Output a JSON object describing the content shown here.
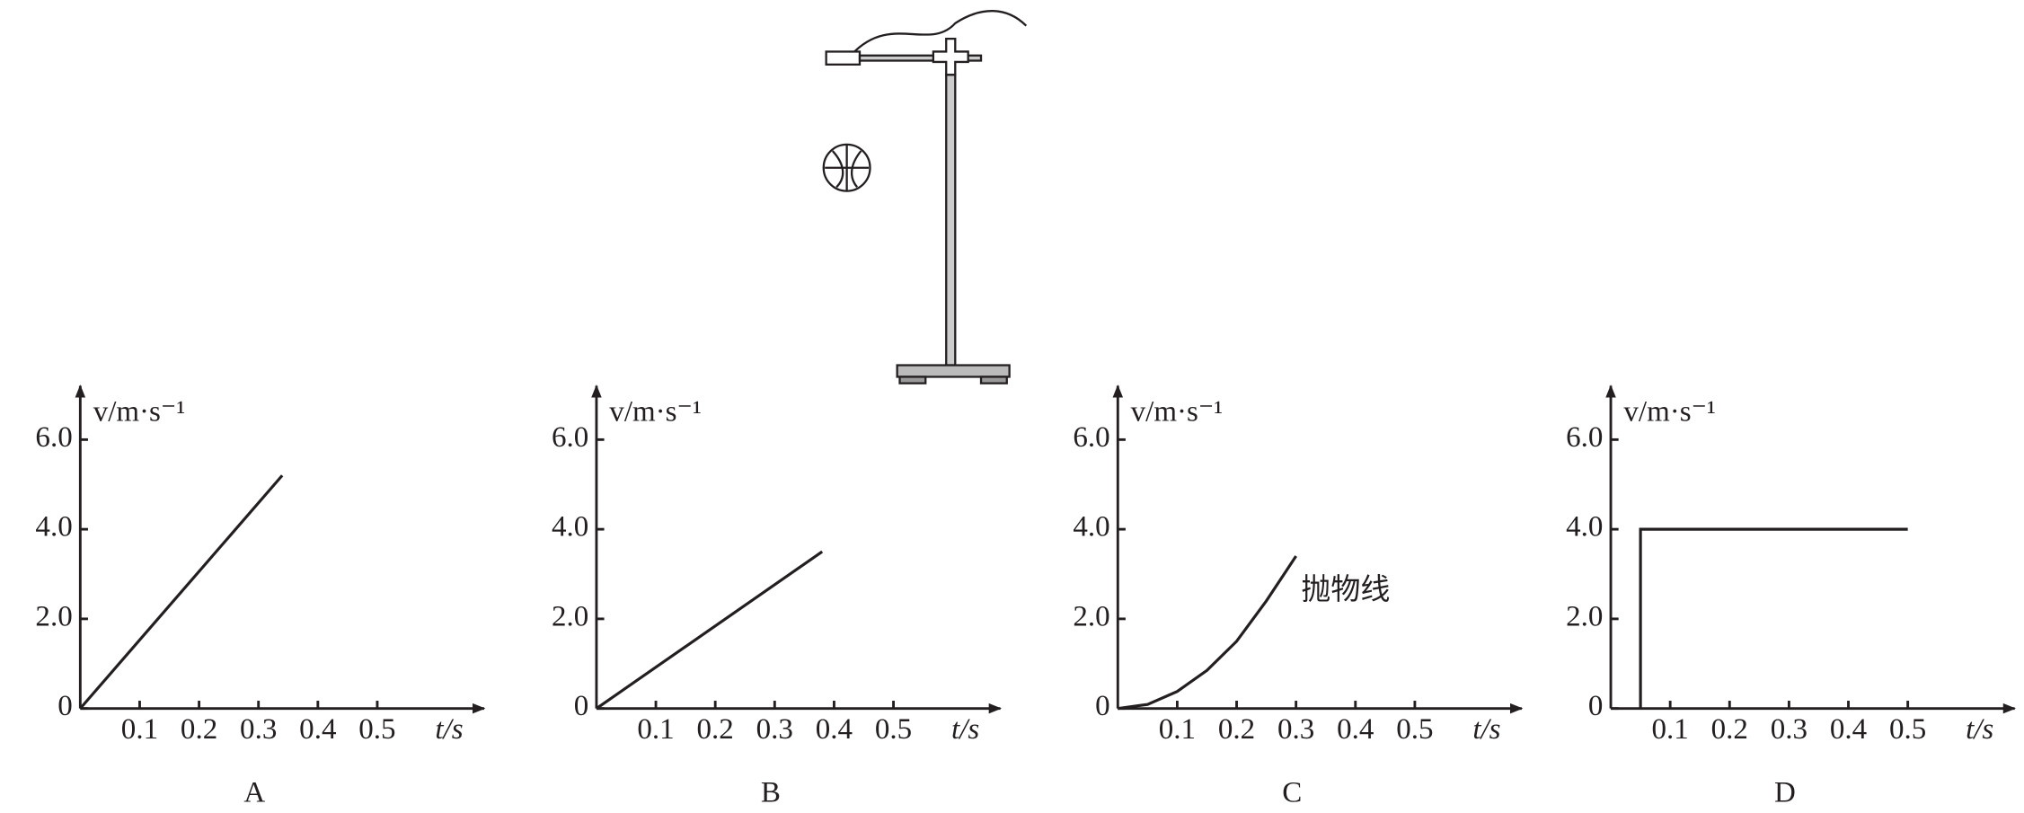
{
  "chart_data": [
    {
      "type": "line",
      "title": "A",
      "y_label": "v/m·s⁻¹",
      "x_label": "t/s",
      "x": [
        0,
        0.34
      ],
      "values": [
        0,
        5.2
      ],
      "color": "#231f20",
      "xlim": [
        0,
        0.68
      ],
      "ylim": [
        0,
        7.2
      ],
      "xticks": [
        0.1,
        0.2,
        0.3,
        0.4,
        0.5
      ],
      "yticks": [
        0,
        {
          "value": 2,
          "label": "2.0"
        },
        {
          "value": 4,
          "label": "4.0"
        },
        {
          "value": 6,
          "label": "6.0"
        }
      ]
    },
    {
      "type": "line",
      "title": "B",
      "y_label": "v/m·s⁻¹",
      "x_label": "t/s",
      "x": [
        0,
        0.38
      ],
      "values": [
        0,
        3.5
      ],
      "color": "#231f20",
      "xlim": [
        0,
        0.68
      ],
      "ylim": [
        0,
        7.2
      ],
      "xticks": [
        0.1,
        0.2,
        0.3,
        0.4,
        0.5
      ],
      "yticks": [
        0,
        {
          "value": 2,
          "label": "2.0"
        },
        {
          "value": 4,
          "label": "4.0"
        },
        {
          "value": 6,
          "label": "6.0"
        }
      ]
    },
    {
      "type": "line",
      "title": "C",
      "y_label": "v/m·s⁻¹",
      "x_label": "t/s",
      "annotation": "抛物线",
      "x": [
        0,
        0.05,
        0.1,
        0.15,
        0.2,
        0.25,
        0.3
      ],
      "values": [
        0,
        0.09,
        0.38,
        0.85,
        1.5,
        2.4,
        3.4
      ],
      "color": "#231f20",
      "xlim": [
        0,
        0.68
      ],
      "ylim": [
        0,
        7.2
      ],
      "xticks": [
        0.1,
        0.2,
        0.3,
        0.4,
        0.5
      ],
      "yticks": [
        0,
        {
          "value": 2,
          "label": "2.0"
        },
        {
          "value": 4,
          "label": "4.0"
        },
        {
          "value": 6,
          "label": "6.0"
        }
      ]
    },
    {
      "type": "line",
      "title": "D",
      "y_label": "v/m·s⁻¹",
      "x_label": "t/s",
      "x": [
        0.05,
        0.05,
        0.5
      ],
      "values": [
        0,
        4,
        4
      ],
      "color": "#231f20",
      "xlim": [
        0,
        0.68
      ],
      "ylim": [
        0,
        7.2
      ],
      "xticks": [
        0.1,
        0.2,
        0.3,
        0.4,
        0.5
      ],
      "yticks": [
        0,
        {
          "value": 2,
          "label": "2.0"
        },
        {
          "value": 4,
          "label": "4.0"
        },
        {
          "value": 6,
          "label": "6.0"
        }
      ]
    }
  ]
}
